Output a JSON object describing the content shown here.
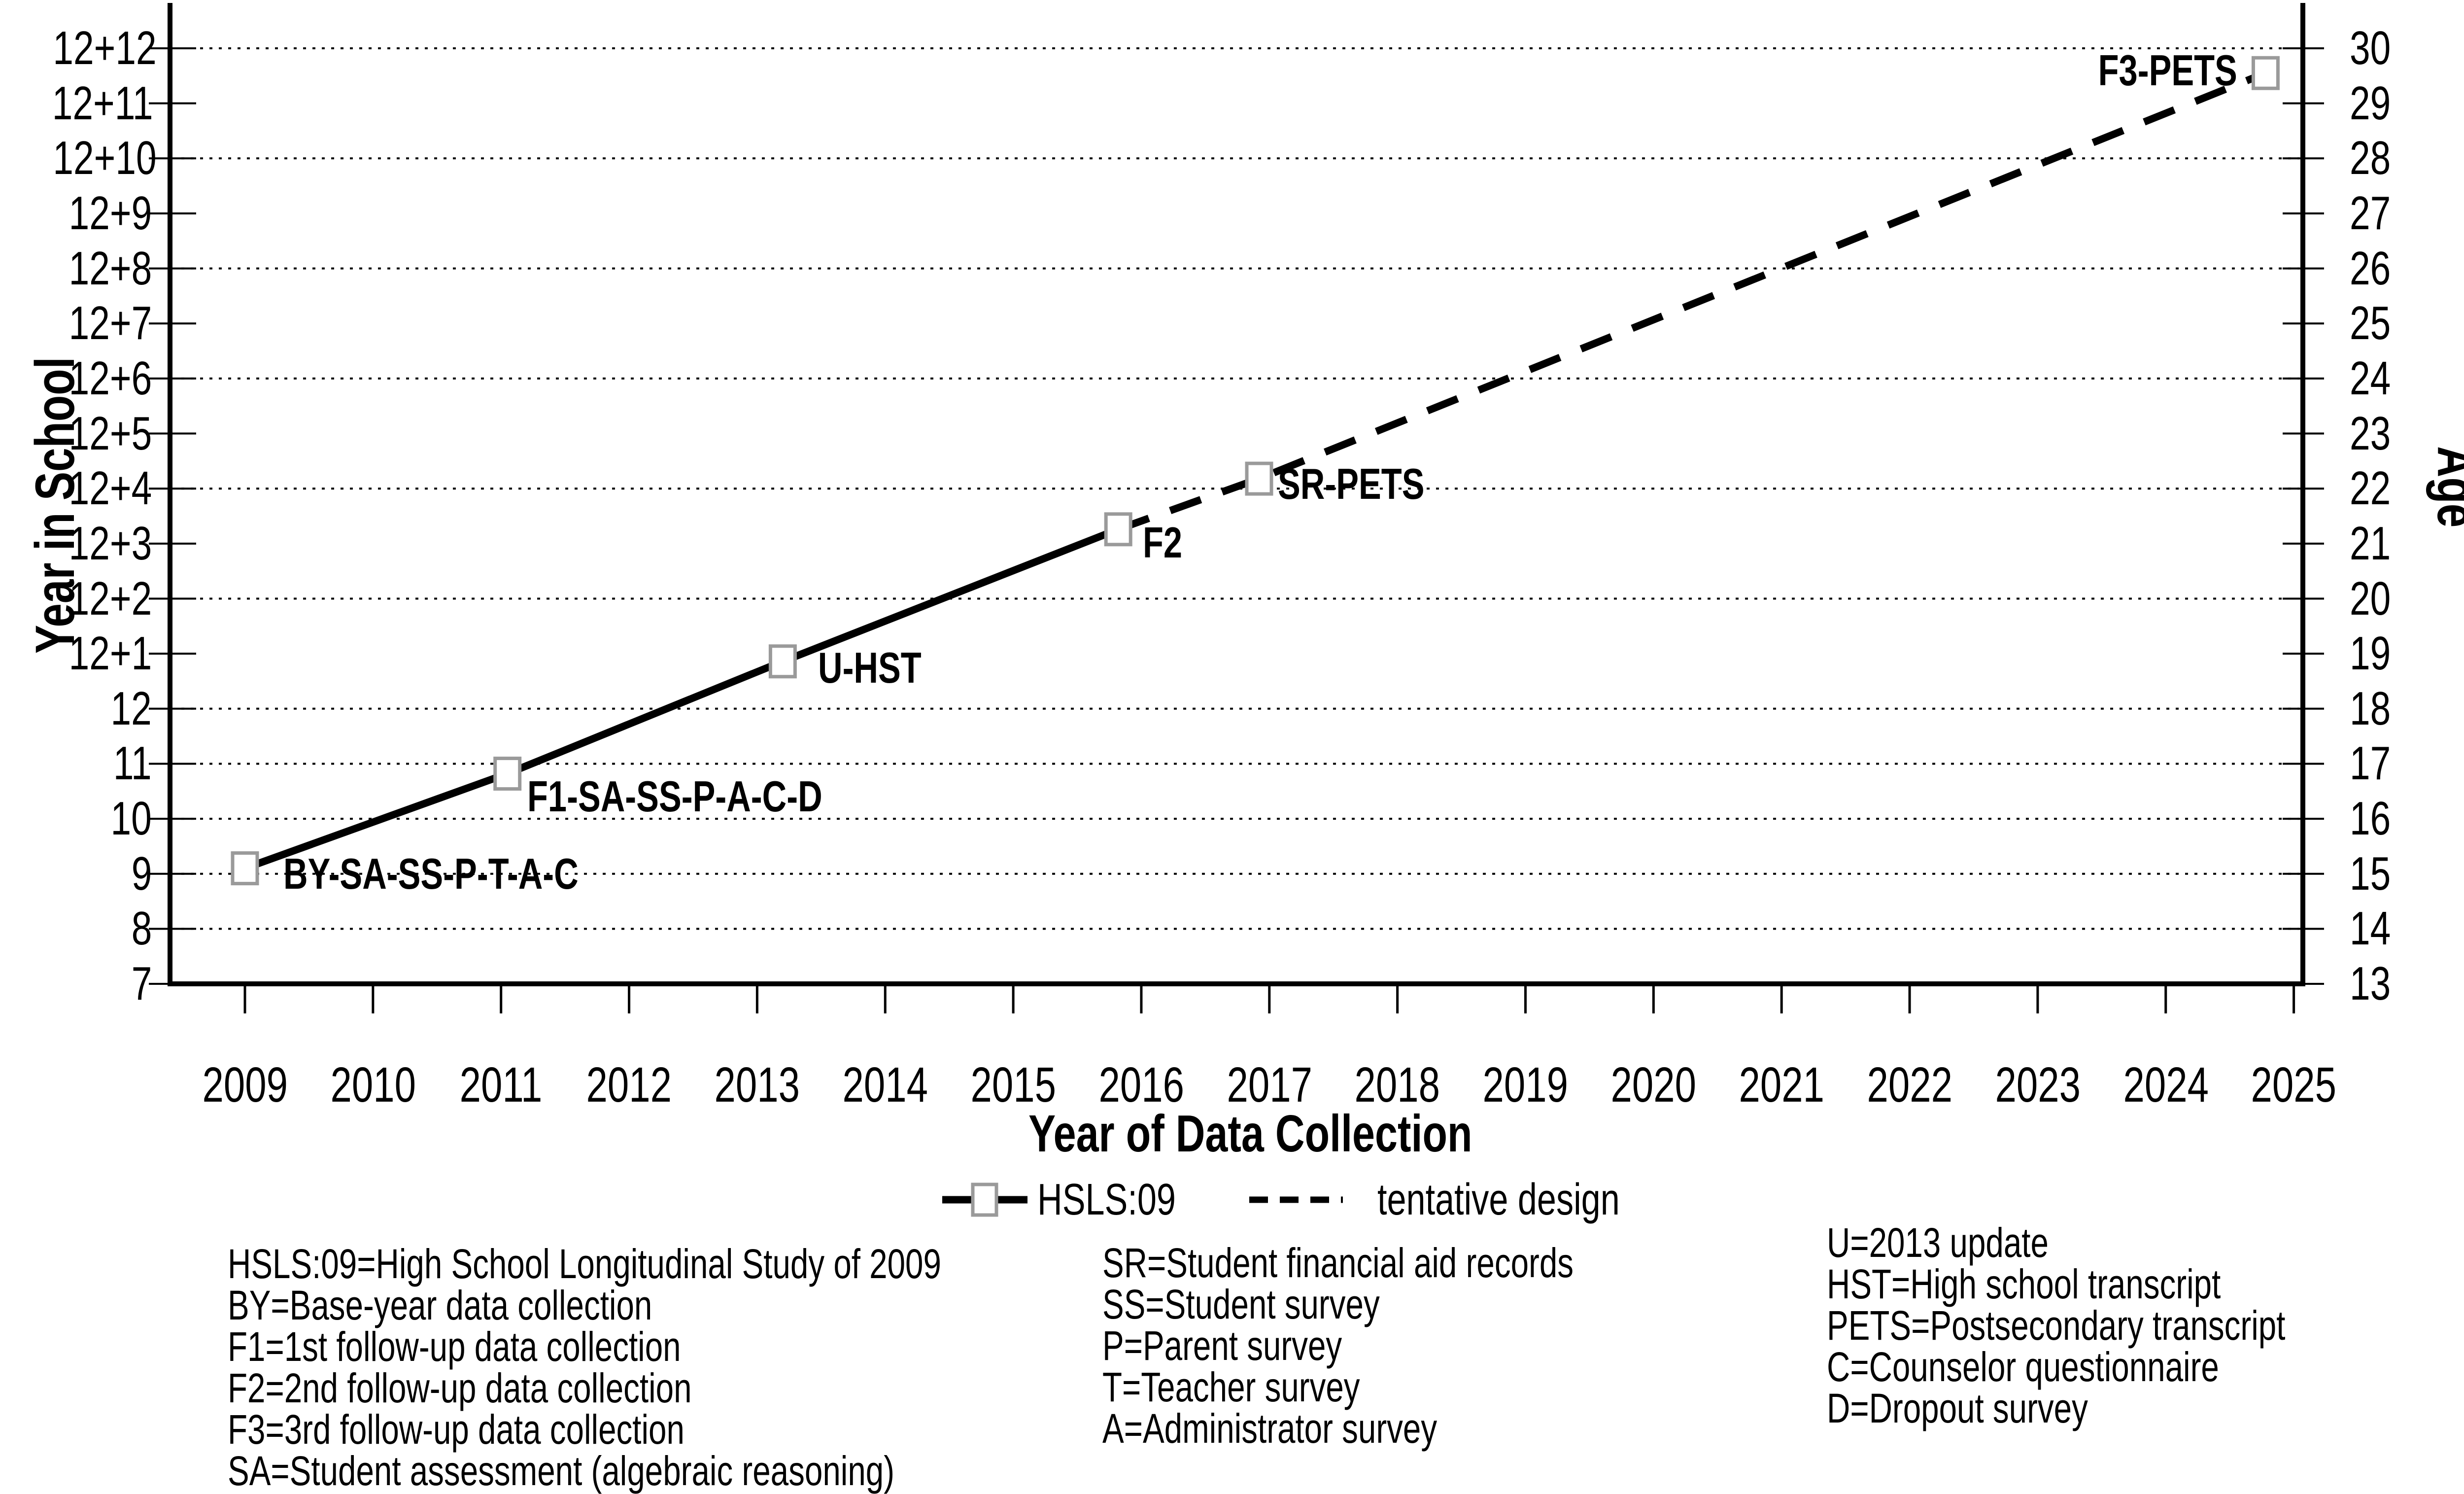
{
  "figure": {
    "x_axis_title": "Year of Data Collection",
    "left_axis_title": "Year in School",
    "right_axis_title": "Age"
  },
  "legend": {
    "series1_label": "HSLS:09",
    "series2_label": "tentative design"
  },
  "key": {
    "columns": [
      {
        "lines": [
          "HSLS:09=High School Longitudinal Study of 2009",
          "BY=Base-year data collection",
          "F1=1st follow-up data collection",
          "F2=2nd follow-up data collection",
          "F3=3rd follow-up data collection",
          "SA=Student assessment (algebraic reasoning)"
        ]
      },
      {
        "lines": [
          "SR=Student financial aid records",
          "SS=Student survey",
          "P=Parent survey",
          "T=Teacher survey",
          "A=Administrator survey"
        ]
      },
      {
        "lines": [
          "U=2013 update",
          "HST=High school transcript",
          "PETS=Postsecondary transcript",
          "C=Counselor questionnaire",
          "D=Dropout survey"
        ]
      }
    ]
  },
  "chart_data": {
    "type": "line",
    "title": "",
    "xlabel": "Year of Data Collection",
    "x_ticks": [
      2009,
      2010,
      2011,
      2012,
      2013,
      2014,
      2015,
      2016,
      2017,
      2018,
      2019,
      2020,
      2021,
      2022,
      2023,
      2024,
      2025
    ],
    "y_axis_pairs": [
      {
        "units": 24,
        "left": "12+12",
        "right": "30"
      },
      {
        "units": 23,
        "left": "12+11",
        "right": "29"
      },
      {
        "units": 22,
        "left": "12+10",
        "right": "28"
      },
      {
        "units": 21,
        "left": "12+9",
        "right": "27"
      },
      {
        "units": 20,
        "left": "12+8",
        "right": "26"
      },
      {
        "units": 19,
        "left": "12+7",
        "right": "25"
      },
      {
        "units": 18,
        "left": "12+6",
        "right": "24"
      },
      {
        "units": 17,
        "left": "12+5",
        "right": "23"
      },
      {
        "units": 16,
        "left": "12+4",
        "right": "22"
      },
      {
        "units": 15,
        "left": "12+3",
        "right": "21"
      },
      {
        "units": 14,
        "left": "12+2",
        "right": "20"
      },
      {
        "units": 13,
        "left": "12+1",
        "right": "19"
      },
      {
        "units": 12,
        "left": "12",
        "right": "18"
      },
      {
        "units": 11,
        "left": "11",
        "right": "17"
      },
      {
        "units": 10,
        "left": "10",
        "right": "16"
      },
      {
        "units": 9,
        "left": "9",
        "right": "15"
      },
      {
        "units": 8,
        "left": "8",
        "right": "14"
      },
      {
        "units": 7,
        "left": "7",
        "right": "13"
      }
    ],
    "gridlines_at_units": [
      8,
      9,
      10,
      11,
      12,
      14,
      16,
      18,
      20,
      22,
      24
    ],
    "ylabel_left": "Year in School",
    "ylabel_right": "Age",
    "series": [
      {
        "name": "HSLS:09",
        "style": "solid",
        "marker": "open-square",
        "points": [
          {
            "x": 2009.0,
            "y_units": 9.1,
            "year_in_school": "9.1",
            "age": 15.1,
            "label": "BY-SA-SS-P-T-A-C",
            "label_anchor": "start",
            "label_dx": 78,
            "label_dy": 11
          },
          {
            "x": 2011.05,
            "y_units": 10.82,
            "year_in_school": "10.8",
            "age": 16.8,
            "label": "F1-SA-SS-P-A-C-D",
            "label_anchor": "start",
            "label_dx": 40,
            "label_dy": 46
          },
          {
            "x": 2013.2,
            "y_units": 12.86,
            "year_in_school": "12.9",
            "age": 18.9,
            "label": "U-HST",
            "label_anchor": "start",
            "label_dx": 72,
            "label_dy": 13
          },
          {
            "x": 2015.82,
            "y_units": 15.26,
            "year_in_school": "12+3.3",
            "age": 21.3,
            "label": "F2",
            "label_anchor": "start",
            "label_dx": 50,
            "label_dy": 27
          }
        ]
      },
      {
        "name": "tentative design",
        "style": "dashed",
        "marker": "open-square",
        "points": [
          {
            "x": 2015.82,
            "y_units": 15.26,
            "year_in_school": "12+3.3",
            "age": 21.3,
            "label": "",
            "label_anchor": "start",
            "label_dx": 0,
            "label_dy": 0
          },
          {
            "x": 2016.92,
            "y_units": 16.18,
            "year_in_school": "12+4.2",
            "age": 22.2,
            "label": "SR-PETS",
            "label_anchor": "start",
            "label_dx": 38,
            "label_dy": 11
          },
          {
            "x": 2024.78,
            "y_units": 23.55,
            "year_in_school": "12+11.6",
            "age": 29.6,
            "label": "F3-PETS",
            "label_anchor": "end",
            "label_dx": -58,
            "label_dy": -5
          }
        ]
      }
    ]
  }
}
